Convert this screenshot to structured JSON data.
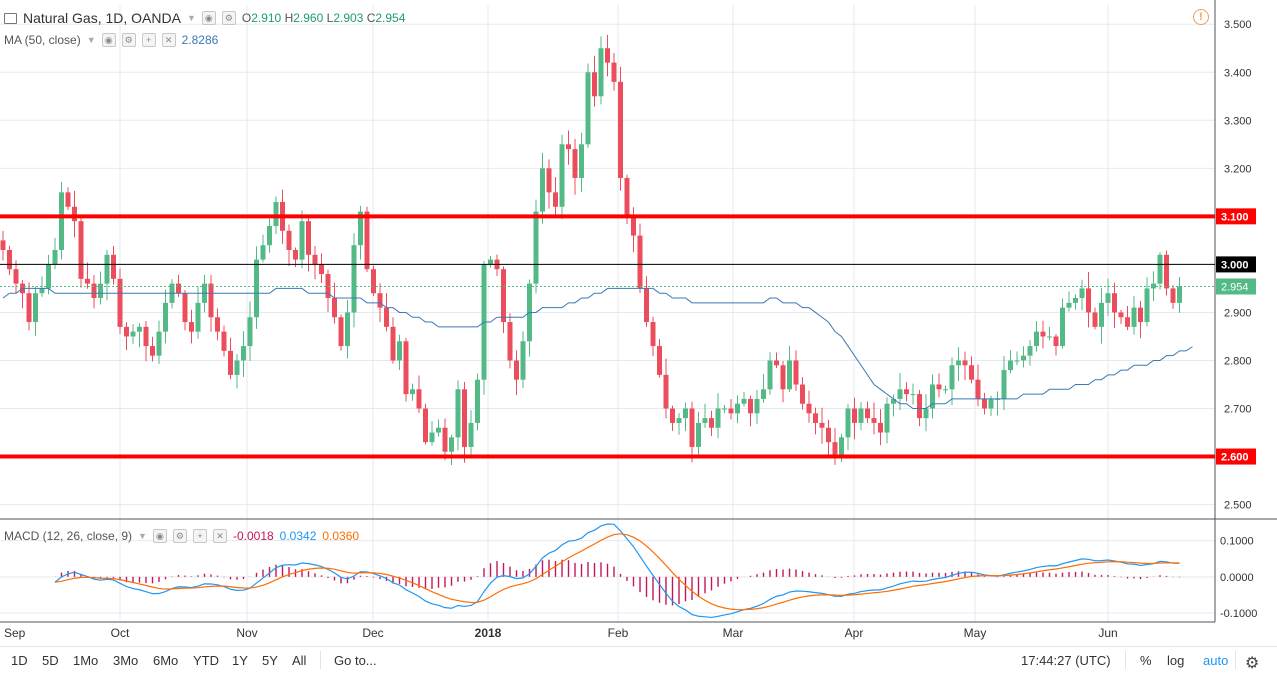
{
  "header": {
    "symbol": "Natural Gas, 1D, OANDA",
    "o_label": "O",
    "o_value": "2.910",
    "h_label": "H",
    "h_value": "2.960",
    "l_label": "L",
    "l_value": "2.903",
    "c_label": "C",
    "c_value": "2.954"
  },
  "ma_legend": {
    "label": "MA (50, close)",
    "value": "2.8286"
  },
  "macd_legend": {
    "label": "MACD (12, 26, close, 9)",
    "hist": "-0.0018",
    "macd": "0.0342",
    "signal": "0.0360"
  },
  "colors": {
    "up": "#53b987",
    "down": "#eb4d5c",
    "ma": "#3c78b4",
    "macd": "#2196f3",
    "signal": "#ff6d00",
    "hist": "#c2185b",
    "level": "#ff0000",
    "grid": "#e6e9ef"
  },
  "chart_data": {
    "type": "candlestick",
    "title": "Natural Gas, 1D, OANDA",
    "price_axis": {
      "min": 2.47,
      "max": 3.54,
      "ticks": [
        "2.500",
        "2.600",
        "2.700",
        "2.800",
        "2.900",
        "3.000",
        "3.100",
        "3.200",
        "3.300",
        "3.400",
        "3.500"
      ]
    },
    "time_axis": [
      "Sep",
      "Oct",
      "Nov",
      "Dec",
      "2018",
      "Feb",
      "Mar",
      "Apr",
      "May",
      "Jun"
    ],
    "horizontal_lines": [
      {
        "price": 3.1,
        "label": "3.100",
        "style": "red-thick"
      },
      {
        "price": 3.0,
        "label": "3.000",
        "style": "black-thin"
      },
      {
        "price": 2.6,
        "label": "2.600",
        "style": "red-thick"
      }
    ],
    "current_price": {
      "price": 2.954,
      "label": "2.954"
    },
    "closes": [
      3.03,
      2.99,
      2.96,
      2.94,
      2.88,
      2.94,
      2.95,
      3.0,
      3.03,
      3.15,
      3.12,
      3.09,
      2.97,
      2.96,
      2.93,
      2.96,
      3.02,
      2.97,
      2.87,
      2.85,
      2.86,
      2.87,
      2.83,
      2.81,
      2.86,
      2.92,
      2.96,
      2.94,
      2.88,
      2.86,
      2.92,
      2.96,
      2.89,
      2.86,
      2.82,
      2.77,
      2.8,
      2.83,
      2.89,
      3.01,
      3.04,
      3.08,
      3.13,
      3.07,
      3.03,
      3.01,
      3.09,
      3.02,
      3.0,
      2.98,
      2.93,
      2.89,
      2.83,
      2.9,
      3.04,
      3.11,
      2.99,
      2.94,
      2.91,
      2.87,
      2.8,
      2.84,
      2.73,
      2.74,
      2.7,
      2.63,
      2.65,
      2.66,
      2.61,
      2.64,
      2.74,
      2.62,
      2.67,
      2.76,
      3.0,
      3.01,
      2.99,
      2.88,
      2.8,
      2.76,
      2.84,
      2.96,
      3.11,
      3.2,
      3.15,
      3.12,
      3.25,
      3.24,
      3.18,
      3.25,
      3.4,
      3.35,
      3.45,
      3.42,
      3.38,
      3.18,
      3.1,
      3.06,
      2.95,
      2.88,
      2.83,
      2.77,
      2.7,
      2.67,
      2.68,
      2.7,
      2.62,
      2.67,
      2.68,
      2.66,
      2.7,
      2.7,
      2.69,
      2.71,
      2.72,
      2.69,
      2.72,
      2.74,
      2.8,
      2.79,
      2.74,
      2.8,
      2.75,
      2.71,
      2.69,
      2.67,
      2.66,
      2.63,
      2.6,
      2.64,
      2.7,
      2.67,
      2.7,
      2.68,
      2.67,
      2.65,
      2.71,
      2.72,
      2.74,
      2.73,
      2.73,
      2.68,
      2.7,
      2.75,
      2.74,
      2.74,
      2.79,
      2.8,
      2.79,
      2.76,
      2.72,
      2.7,
      2.72,
      2.72,
      2.78,
      2.8,
      2.8,
      2.81,
      2.83,
      2.86,
      2.85,
      2.85,
      2.83,
      2.91,
      2.92,
      2.93,
      2.95,
      2.9,
      2.87,
      2.92,
      2.94,
      2.9,
      2.89,
      2.87,
      2.91,
      2.88,
      2.95,
      2.96,
      3.02,
      2.95,
      2.92,
      2.954
    ],
    "ma50": [
      2.93,
      2.94,
      2.94,
      2.95,
      2.95,
      2.95,
      2.95,
      2.95,
      2.94,
      2.94,
      2.94,
      2.94,
      2.94,
      2.94,
      2.94,
      2.94,
      2.94,
      2.94,
      2.94,
      2.94,
      2.94,
      2.94,
      2.94,
      2.94,
      2.94,
      2.94,
      2.94,
      2.94,
      2.94,
      2.94,
      2.94,
      2.94,
      2.94,
      2.94,
      2.94,
      2.94,
      2.94,
      2.94,
      2.94,
      2.94,
      2.94,
      2.94,
      2.95,
      2.95,
      2.95,
      2.95,
      2.95,
      2.94,
      2.94,
      2.94,
      2.94,
      2.93,
      2.93,
      2.93,
      2.93,
      2.93,
      2.92,
      2.92,
      2.92,
      2.91,
      2.91,
      2.9,
      2.9,
      2.89,
      2.89,
      2.88,
      2.88,
      2.87,
      2.87,
      2.87,
      2.87,
      2.87,
      2.87,
      2.87,
      2.88,
      2.88,
      2.89,
      2.89,
      2.89,
      2.89,
      2.89,
      2.9,
      2.9,
      2.91,
      2.91,
      2.91,
      2.91,
      2.92,
      2.92,
      2.93,
      2.93,
      2.94,
      2.94,
      2.95,
      2.95,
      2.95,
      2.95,
      2.95,
      2.95,
      2.95,
      2.95,
      2.94,
      2.94,
      2.93,
      2.93,
      2.93,
      2.92,
      2.92,
      2.92,
      2.92,
      2.92,
      2.92,
      2.92,
      2.92,
      2.92,
      2.92,
      2.92,
      2.92,
      2.93,
      2.93,
      2.92,
      2.92,
      2.92,
      2.91,
      2.91,
      2.9,
      2.89,
      2.88,
      2.86,
      2.85,
      2.83,
      2.81,
      2.79,
      2.77,
      2.75,
      2.74,
      2.73,
      2.72,
      2.71,
      2.71,
      2.7,
      2.7,
      2.7,
      2.71,
      2.71,
      2.71,
      2.72,
      2.72,
      2.72,
      2.72,
      2.72,
      2.72,
      2.72,
      2.72,
      2.72,
      2.72,
      2.72,
      2.73,
      2.73,
      2.73,
      2.73,
      2.74,
      2.74,
      2.74,
      2.74,
      2.75,
      2.75,
      2.75,
      2.76,
      2.76,
      2.77,
      2.77,
      2.78,
      2.78,
      2.79,
      2.79,
      2.79,
      2.8,
      2.8,
      2.81,
      2.81,
      2.82,
      2.82,
      2.8286
    ],
    "macd_axis": {
      "min": -0.125,
      "max": 0.16,
      "ticks": [
        "0.1000",
        "0.0000",
        "-0.1000"
      ]
    },
    "macd_last": -0.0018
  },
  "bottom_bar": {
    "ranges": [
      "1D",
      "5D",
      "1Mo",
      "3Mo",
      "6Mo",
      "YTD",
      "1Y",
      "5Y",
      "All"
    ],
    "goto": "Go to...",
    "time": "17:44:27 (UTC)",
    "percent": "%",
    "log": "log",
    "auto": "auto"
  }
}
